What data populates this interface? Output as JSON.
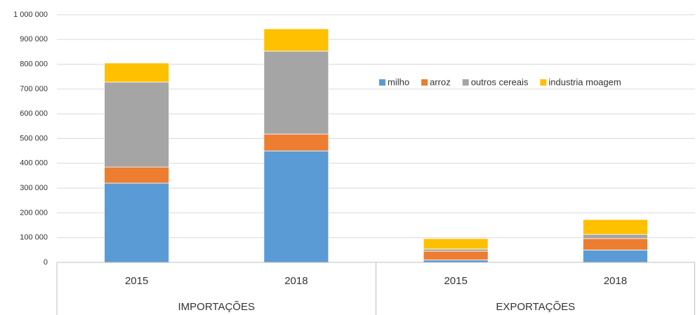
{
  "chart_data": {
    "type": "stacked_bar",
    "categories": [
      "2015",
      "2018",
      "2015",
      "2018"
    ],
    "groups": [
      "IMPORTAÇÕES",
      "EXPORTAÇÕES"
    ],
    "series": [
      {
        "name": "milho",
        "color": "#5b9bd5",
        "values": [
          320000,
          450000,
          10000,
          50000
        ]
      },
      {
        "name": "arroz",
        "color": "#ed7d31",
        "values": [
          65000,
          68000,
          35000,
          46000
        ]
      },
      {
        "name": "outros cereais",
        "color": "#a5a5a5",
        "values": [
          343000,
          335000,
          9000,
          17000
        ]
      },
      {
        "name": "industria moagem",
        "color": "#ffc000",
        "values": [
          77000,
          90000,
          42000,
          60000
        ]
      }
    ],
    "ylim": [
      0,
      1000000
    ],
    "yticks": [
      0,
      {
        "value": 100000,
        "label": "100 000"
      },
      {
        "value": 200000,
        "label": "200 000"
      },
      {
        "value": 300000,
        "label": "300 000"
      },
      {
        "value": 400000,
        "label": "400 000"
      },
      {
        "value": 500000,
        "label": "500 000"
      },
      {
        "value": 600000,
        "label": "600 000"
      },
      {
        "value": 700000,
        "label": "700 000"
      },
      {
        "value": 800000,
        "label": "800 000"
      },
      {
        "value": 900000,
        "label": "900 000"
      },
      {
        "value": 1000000,
        "label": "1 000 000"
      }
    ],
    "grid": true
  }
}
